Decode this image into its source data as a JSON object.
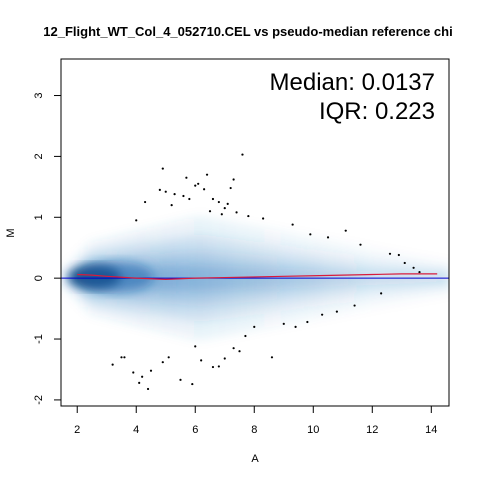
{
  "chart_data": {
    "type": "scatter",
    "title": "12_Flight_WT_Col_4_052710.CEL vs pseudo-median reference chi",
    "xlabel": "A",
    "ylabel": "M",
    "xlim": [
      1.45,
      14.6
    ],
    "ylim": [
      -2.1,
      3.6
    ],
    "xticks": [
      2,
      4,
      6,
      8,
      10,
      12,
      14
    ],
    "yticks": [
      -2,
      -1,
      0,
      1,
      2,
      3
    ],
    "annotations": [
      "Median: 0.0137",
      "IQR: 0.223"
    ],
    "zero_line_color": "#0000cc",
    "loess_color": "#d81b3c",
    "density_color": "#2e7bbf",
    "loess_x": [
      2.0,
      2.5,
      3.0,
      4.0,
      5.0,
      6.0,
      7.0,
      8.0,
      9.0,
      10.0,
      11.0,
      12.0,
      13.0,
      14.2
    ],
    "loess_y": [
      0.06,
      0.05,
      0.03,
      0.0,
      -0.02,
      0.0,
      0.01,
      0.02,
      0.03,
      0.04,
      0.05,
      0.06,
      0.07,
      0.07
    ],
    "outliers": {
      "x": [
        4.9,
        5.0,
        5.3,
        5.7,
        6.0,
        6.3,
        6.6,
        7.0,
        7.3,
        7.6,
        4.8,
        5.6,
        6.1,
        6.4,
        6.8,
        7.1,
        7.4,
        4.3,
        4.0,
        5.2,
        5.8,
        6.5,
        6.9,
        7.2,
        7.8,
        8.3,
        9.3,
        9.9,
        10.5,
        11.1,
        11.6,
        12.6,
        12.9,
        13.1,
        13.4,
        13.6,
        3.5,
        3.9,
        4.2,
        4.5,
        4.9,
        5.5,
        6.0,
        6.6,
        7.0,
        7.5,
        8.0,
        8.6,
        9.0,
        9.4,
        9.8,
        10.3,
        10.8,
        11.4,
        12.3,
        3.2,
        3.6,
        4.1,
        4.4,
        5.1,
        5.9,
        6.2,
        6.8,
        7.3,
        7.7
      ],
      "y": [
        1.8,
        1.42,
        1.38,
        1.65,
        1.52,
        1.46,
        1.3,
        1.15,
        1.62,
        2.03,
        1.45,
        1.35,
        1.55,
        1.7,
        1.25,
        1.22,
        1.08,
        1.25,
        0.95,
        1.2,
        1.3,
        1.1,
        1.05,
        1.48,
        1.02,
        0.98,
        0.88,
        0.72,
        0.67,
        0.78,
        0.55,
        0.4,
        0.38,
        0.25,
        0.17,
        0.1,
        -1.3,
        -1.55,
        -1.62,
        -1.52,
        -1.38,
        -1.67,
        -1.12,
        -1.46,
        -1.32,
        -1.2,
        -0.8,
        -1.3,
        -0.75,
        -0.8,
        -0.72,
        -0.6,
        -0.55,
        -0.45,
        -0.25,
        -1.42,
        -1.3,
        -1.72,
        -1.82,
        -1.3,
        -1.74,
        -1.35,
        -1.45,
        -1.15,
        -0.95
      ]
    }
  }
}
